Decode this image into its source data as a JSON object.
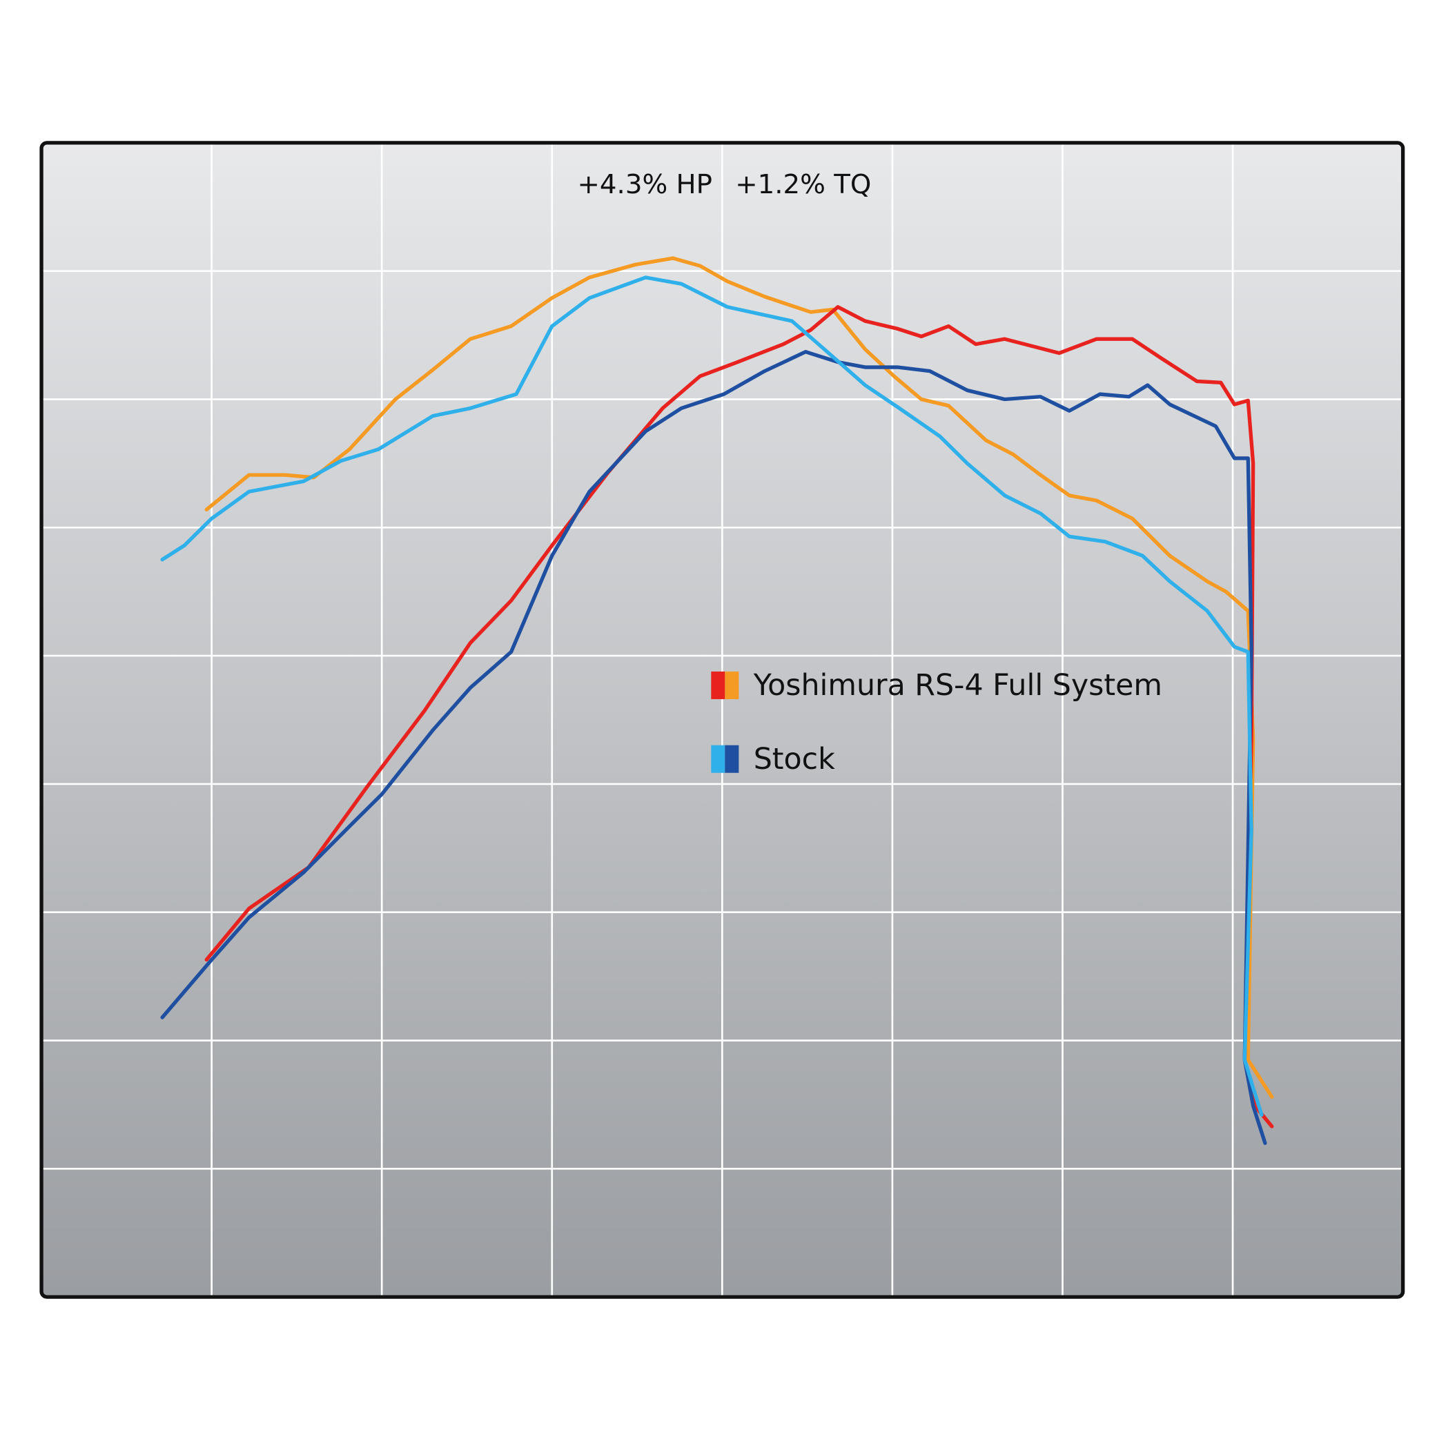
{
  "chart_data": {
    "type": "line",
    "annotations": [
      "+4.3% HP",
      "+1.2% TQ"
    ],
    "xlim": [
      0,
      8
    ],
    "ylim": [
      0,
      9
    ],
    "xticks": [
      1,
      2,
      3,
      4,
      5,
      6,
      7
    ],
    "yticks": [
      1,
      2,
      3,
      4,
      5,
      6,
      7,
      8
    ],
    "grid": true,
    "series": [
      {
        "name": "Yoshimura RS-4 Full System",
        "lines": [
          {
            "color": "#f59a23",
            "x": [
              0.97,
              1.22,
              1.43,
              1.6,
              1.81,
              2.08,
              2.3,
              2.52,
              2.76,
              3.0,
              3.22,
              3.49,
              3.71,
              3.87,
              4.03,
              4.25,
              4.52,
              4.65,
              4.84,
              5.01,
              5.17,
              5.33,
              5.55,
              5.71,
              5.87,
              6.04,
              6.2,
              6.41,
              6.63,
              6.85,
              6.96,
              7.09,
              7.12,
              7.09,
              7.23
            ],
            "values": [
              6.14,
              6.41,
              6.41,
              6.39,
              6.61,
              7.0,
              7.23,
              7.47,
              7.57,
              7.79,
              7.95,
              8.05,
              8.1,
              8.04,
              7.92,
              7.8,
              7.68,
              7.7,
              7.39,
              7.18,
              7.0,
              6.95,
              6.68,
              6.57,
              6.41,
              6.25,
              6.21,
              6.07,
              5.78,
              5.58,
              5.5,
              5.35,
              4.35,
              1.85,
              1.56
            ]
          },
          {
            "color": "#e8231f",
            "x": [
              0.97,
              1.22,
              1.57,
              1.92,
              2.25,
              2.52,
              2.76,
              3.0,
              3.33,
              3.65,
              3.87,
              4.09,
              4.36,
              4.52,
              4.68,
              4.84,
              5.03,
              5.17,
              5.33,
              5.49,
              5.66,
              5.98,
              6.2,
              6.41,
              6.58,
              6.79,
              6.93,
              7.01,
              7.09,
              7.12,
              7.11,
              7.07,
              7.13,
              7.23
            ],
            "values": [
              2.63,
              3.03,
              3.35,
              3.99,
              4.57,
              5.1,
              5.43,
              5.86,
              6.43,
              6.93,
              7.18,
              7.29,
              7.43,
              7.54,
              7.72,
              7.61,
              7.55,
              7.49,
              7.57,
              7.43,
              7.47,
              7.36,
              7.47,
              7.47,
              7.32,
              7.14,
              7.13,
              6.96,
              6.99,
              6.5,
              4.35,
              1.85,
              1.49,
              1.33
            ]
          }
        ]
      },
      {
        "name": "Stock",
        "lines": [
          {
            "color": "#1f4fa0",
            "x": [
              0.71,
              1.0,
              1.22,
              1.54,
              1.81,
              2.0,
              2.3,
              2.52,
              2.76,
              3.0,
              3.22,
              3.55,
              3.76,
              4.01,
              4.25,
              4.49,
              4.68,
              4.84,
              5.03,
              5.22,
              5.44,
              5.66,
              5.87,
              6.04,
              6.22,
              6.39,
              6.5,
              6.63,
              6.9,
              7.01,
              7.09,
              7.11,
              7.07,
              7.12,
              7.19
            ],
            "values": [
              2.18,
              2.63,
              2.96,
              3.31,
              3.67,
              3.92,
              4.42,
              4.75,
              5.03,
              5.78,
              6.28,
              6.75,
              6.93,
              7.04,
              7.22,
              7.37,
              7.29,
              7.25,
              7.25,
              7.22,
              7.07,
              7.0,
              7.02,
              6.91,
              7.04,
              7.02,
              7.11,
              6.96,
              6.79,
              6.54,
              6.54,
              5.07,
              1.85,
              1.49,
              1.2
            ]
          },
          {
            "color": "#2fb0ea",
            "x": [
              0.71,
              0.84,
              1.0,
              1.22,
              1.54,
              1.76,
              1.98,
              2.3,
              2.52,
              2.79,
              3.0,
              3.22,
              3.55,
              3.76,
              4.03,
              4.41,
              4.6,
              4.84,
              5.03,
              5.28,
              5.44,
              5.66,
              5.87,
              6.04,
              6.25,
              6.47,
              6.63,
              6.85,
              7.01,
              7.09,
              7.11,
              7.07,
              7.12,
              7.17
            ],
            "values": [
              5.75,
              5.86,
              6.07,
              6.28,
              6.36,
              6.52,
              6.61,
              6.87,
              6.93,
              7.04,
              7.57,
              7.79,
              7.95,
              7.9,
              7.72,
              7.61,
              7.39,
              7.11,
              6.94,
              6.71,
              6.5,
              6.25,
              6.11,
              5.93,
              5.89,
              5.78,
              5.58,
              5.35,
              5.07,
              5.03,
              3.64,
              1.85,
              1.63,
              1.42
            ]
          }
        ]
      }
    ]
  }
}
